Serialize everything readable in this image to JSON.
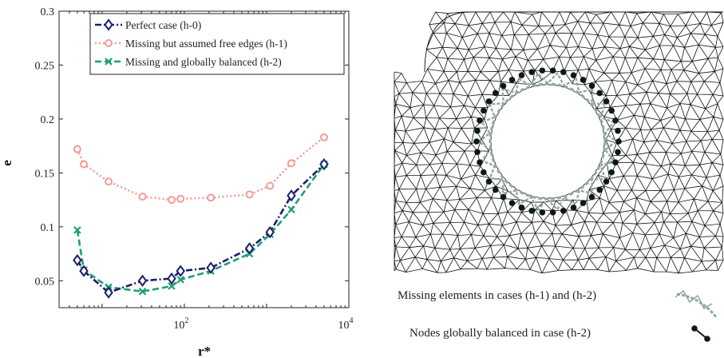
{
  "chart_data": {
    "type": "line",
    "title": "",
    "xlabel": "r*",
    "ylabel": "e",
    "xscale": "log",
    "xlim": [
      3,
      10000
    ],
    "ylim": [
      0.025,
      0.3
    ],
    "yticks": [
      0.05,
      0.1,
      0.15,
      0.2,
      0.25,
      0.3
    ],
    "ytick_labels": [
      "0.05",
      "0.1",
      "0.15",
      "0.2",
      "0.25",
      "0.3"
    ],
    "xtick_labels": [
      {
        "base": "10",
        "exp": "2",
        "value": 100
      },
      {
        "base": "10",
        "exp": "4",
        "value": 10000
      }
    ],
    "legend_position": "top",
    "grid": false,
    "series": [
      {
        "name": "Perfect case (h-0)",
        "color": "#1b1f6b",
        "marker": "diamond",
        "dash": "dashdot",
        "x": [
          5,
          6,
          12,
          31,
          70,
          90,
          210,
          620,
          1100,
          2000,
          5000
        ],
        "y": [
          0.069,
          0.059,
          0.039,
          0.05,
          0.052,
          0.059,
          0.062,
          0.08,
          0.095,
          0.129,
          0.158
        ]
      },
      {
        "name": "Missing but assumed free edges (h-1)",
        "color": "#f29b9b",
        "marker": "circle",
        "dash": "dotted",
        "x": [
          5,
          6,
          12,
          31,
          70,
          90,
          210,
          620,
          1100,
          2000,
          5000
        ],
        "y": [
          0.172,
          0.158,
          0.142,
          0.128,
          0.125,
          0.126,
          0.127,
          0.13,
          0.138,
          0.159,
          0.183
        ]
      },
      {
        "name": "Missing and globally balanced (h-2)",
        "color": "#1e9e76",
        "marker": "x",
        "dash": "dashed",
        "x": [
          5,
          6,
          12,
          31,
          70,
          90,
          210,
          620,
          1100,
          2000,
          5000
        ],
        "y": [
          0.097,
          0.06,
          0.044,
          0.04,
          0.045,
          0.051,
          0.059,
          0.075,
          0.093,
          0.116,
          0.158
        ]
      }
    ]
  },
  "figure_right": {
    "caption_missing": "Missing elements in cases (h-1) and (h-2)",
    "caption_nodes": "Nodes globally balanced in case (h-2)",
    "mesh_color": "#111111",
    "missing_color": "#93a89e",
    "node_color": "#0d1a12"
  }
}
